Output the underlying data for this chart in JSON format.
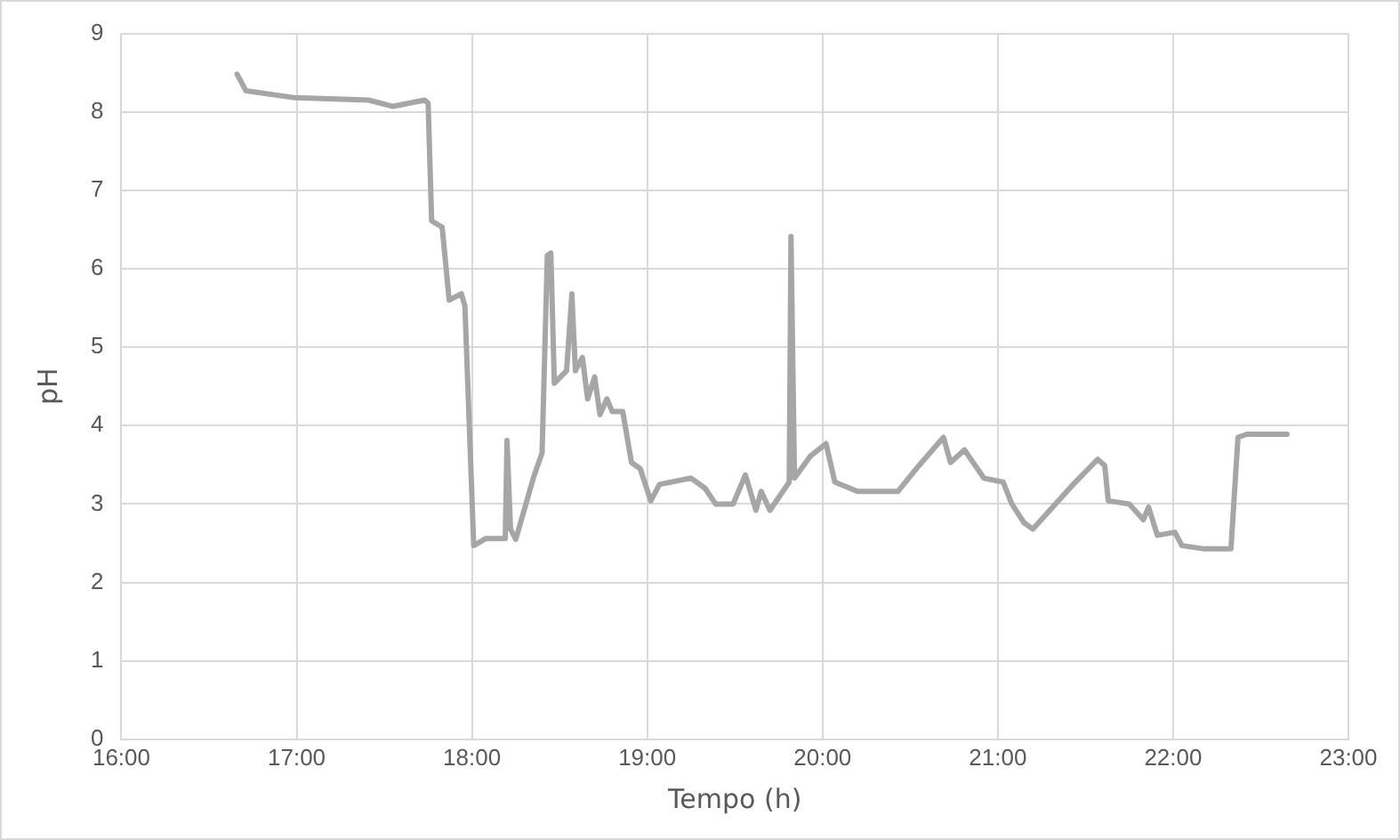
{
  "chart_data": {
    "type": "line",
    "xlabel": "Tempo (h)",
    "ylabel": "pH",
    "grid": true,
    "legend": false,
    "marker": "none",
    "line_style": "solid",
    "xlim": [
      16,
      23
    ],
    "xticks": [
      {
        "value": 16,
        "label": "16:00"
      },
      {
        "value": 17,
        "label": "17:00"
      },
      {
        "value": 18,
        "label": "18:00"
      },
      {
        "value": 19,
        "label": "19:00"
      },
      {
        "value": 20,
        "label": "20:00"
      },
      {
        "value": 21,
        "label": "21:00"
      },
      {
        "value": 22,
        "label": "22:00"
      },
      {
        "value": 23,
        "label": "23:00"
      }
    ],
    "ylim": [
      0,
      9
    ],
    "yticks": [
      0,
      1,
      2,
      3,
      4,
      5,
      6,
      7,
      8,
      9
    ],
    "x": [
      16.66,
      16.71,
      16.99,
      17.41,
      17.55,
      17.73,
      17.75,
      17.77,
      17.83,
      17.87,
      17.94,
      17.96,
      18.01,
      18.08,
      18.19,
      18.2,
      18.22,
      18.25,
      18.35,
      18.4,
      18.43,
      18.45,
      18.47,
      18.54,
      18.57,
      18.59,
      18.63,
      18.66,
      18.7,
      18.73,
      18.77,
      18.8,
      18.86,
      18.91,
      18.96,
      19.02,
      19.07,
      19.25,
      19.33,
      19.39,
      19.49,
      19.56,
      19.62,
      19.65,
      19.7,
      19.81,
      19.82,
      19.84,
      19.93,
      20.02,
      20.07,
      20.2,
      20.43,
      20.55,
      20.69,
      20.73,
      20.81,
      20.92,
      21.03,
      21.08,
      21.15,
      21.2,
      21.43,
      21.57,
      21.61,
      21.63,
      21.75,
      21.83,
      21.86,
      21.91,
      22.01,
      22.05,
      22.17,
      22.33,
      22.37,
      22.42,
      22.65
    ],
    "series": [
      {
        "color": "#a6a6a6",
        "values": [
          8.48,
          8.27,
          8.18,
          8.15,
          8.07,
          8.15,
          8.11,
          6.61,
          6.53,
          5.6,
          5.68,
          5.52,
          2.47,
          2.56,
          2.56,
          3.81,
          2.68,
          2.55,
          3.33,
          3.65,
          6.17,
          6.2,
          4.54,
          4.7,
          5.68,
          4.7,
          4.87,
          4.34,
          4.62,
          4.14,
          4.34,
          4.18,
          4.18,
          3.53,
          3.45,
          3.04,
          3.25,
          3.33,
          3.2,
          3.0,
          3.0,
          3.37,
          2.92,
          3.16,
          2.92,
          3.28,
          6.41,
          3.33,
          3.61,
          3.77,
          3.28,
          3.16,
          3.16,
          3.49,
          3.85,
          3.53,
          3.69,
          3.33,
          3.28,
          3.0,
          2.76,
          2.68,
          3.25,
          3.57,
          3.49,
          3.04,
          3.0,
          2.8,
          2.96,
          2.6,
          2.64,
          2.47,
          2.43,
          2.43,
          3.85,
          3.89,
          3.89
        ]
      }
    ]
  }
}
